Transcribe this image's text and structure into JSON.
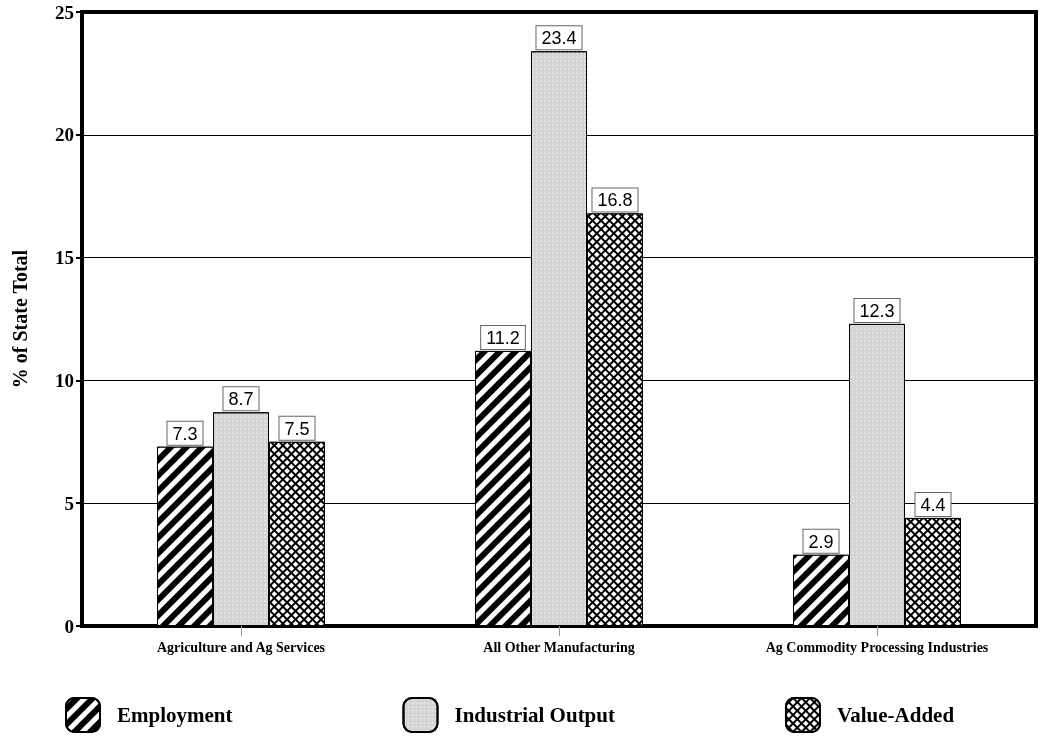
{
  "chart_data": {
    "type": "bar",
    "ylabel": "% of State Total",
    "categories": [
      "Agriculture and Ag Services",
      "All Other Manufacturing",
      "Ag Commodity Processing Industries"
    ],
    "series": [
      {
        "name": "Employment",
        "color": "#000000",
        "values": [
          7.3,
          11.2,
          2.9
        ]
      },
      {
        "name": "Industrial Output",
        "color": "#d4d4d4",
        "values": [
          8.7,
          23.4,
          12.3
        ]
      },
      {
        "name": "Value-Added",
        "color": "#000000",
        "values": [
          7.5,
          16.8,
          4.4
        ]
      }
    ],
    "ylim": [
      0,
      25
    ],
    "yticks": [
      0,
      5,
      10,
      15,
      20,
      25
    ],
    "grid": "y",
    "legend": "bottom",
    "data_labels": true
  }
}
